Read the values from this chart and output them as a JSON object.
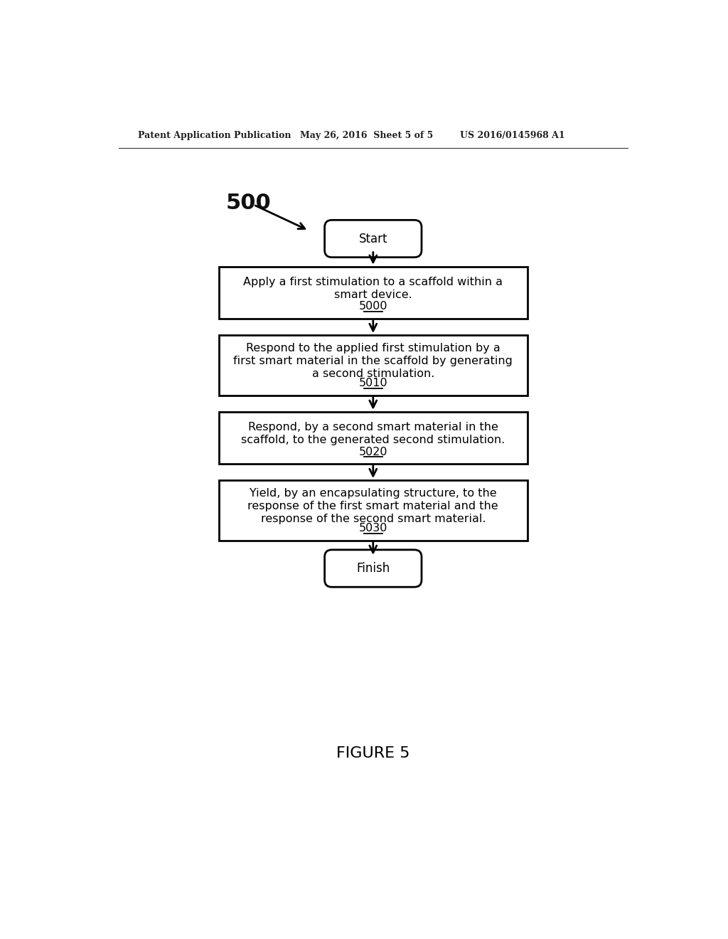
{
  "bg_color": "#ffffff",
  "header_left": "Patent Application Publication",
  "header_mid": "May 26, 2016  Sheet 5 of 5",
  "header_right": "US 2016/0145968 A1",
  "figure_label": "FIGURE 5",
  "diagram_label": "500",
  "start_label": "Start",
  "finish_label": "Finish",
  "boxes": [
    {
      "lines": [
        "Apply a first stimulation to a scaffold within a",
        "smart device."
      ],
      "code": "5000"
    },
    {
      "lines": [
        "Respond to the applied first stimulation by a",
        "first smart material in the scaffold by generating",
        "a second stimulation."
      ],
      "code": "5010"
    },
    {
      "lines": [
        "Respond, by a second smart material in the",
        "scaffold, to the generated second stimulation."
      ],
      "code": "5020"
    },
    {
      "lines": [
        "Yield, by an encapsulating structure, to the",
        "response of the first smart material and the",
        "response of the second smart material."
      ],
      "code": "5030"
    }
  ]
}
